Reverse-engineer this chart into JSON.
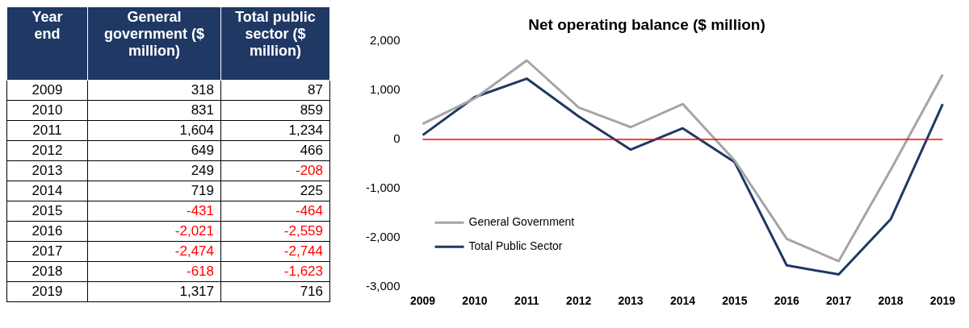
{
  "chart_data": {
    "type": "line",
    "title": "Net operating balance ($ million)",
    "categories": [
      "2009",
      "2010",
      "2011",
      "2012",
      "2013",
      "2014",
      "2015",
      "2016",
      "2017",
      "2018",
      "2019"
    ],
    "series": [
      {
        "name": "General Government",
        "color": "#a5a5a5",
        "values": [
          318,
          831,
          1604,
          649,
          249,
          719,
          -431,
          -2021,
          -2474,
          -618,
          1317
        ]
      },
      {
        "name": "Total Public Sector",
        "color": "#203864",
        "values": [
          87,
          859,
          1234,
          466,
          -208,
          225,
          -464,
          -2559,
          -2744,
          -1623,
          716
        ]
      }
    ],
    "ylim": [
      -3000,
      2000
    ],
    "yticks": [
      {
        "value": -3000,
        "label": "-3,000"
      },
      {
        "value": -2000,
        "label": "-2,000"
      },
      {
        "value": -1000,
        "label": "-1,000"
      },
      0,
      {
        "value": 1000,
        "label": "1,000"
      },
      {
        "value": 2000,
        "label": "2,000"
      }
    ],
    "ref_lines": [
      {
        "axis": "y",
        "value": 0,
        "color": "#ff0000"
      }
    ],
    "grid": false,
    "legend": "bottom left",
    "marker": "none",
    "line_style": "solid",
    "annotations": [
      "Year end",
      "General government ($ million)",
      "Total public sector ($ million)",
      "2009",
      "318",
      "87",
      "2010",
      "831",
      "859",
      "2011",
      "1,604",
      "1,234",
      "2012",
      "649",
      "466",
      "2013",
      "249",
      "-208",
      "2014",
      "719",
      "225",
      "2015",
      "-431",
      "-464",
      "2016",
      "-2,021",
      "-2,559",
      "2017",
      "-2,474",
      "-2,744",
      "2018",
      "-618",
      "-1,623",
      "2019",
      "1,317",
      "716"
    ]
  }
}
